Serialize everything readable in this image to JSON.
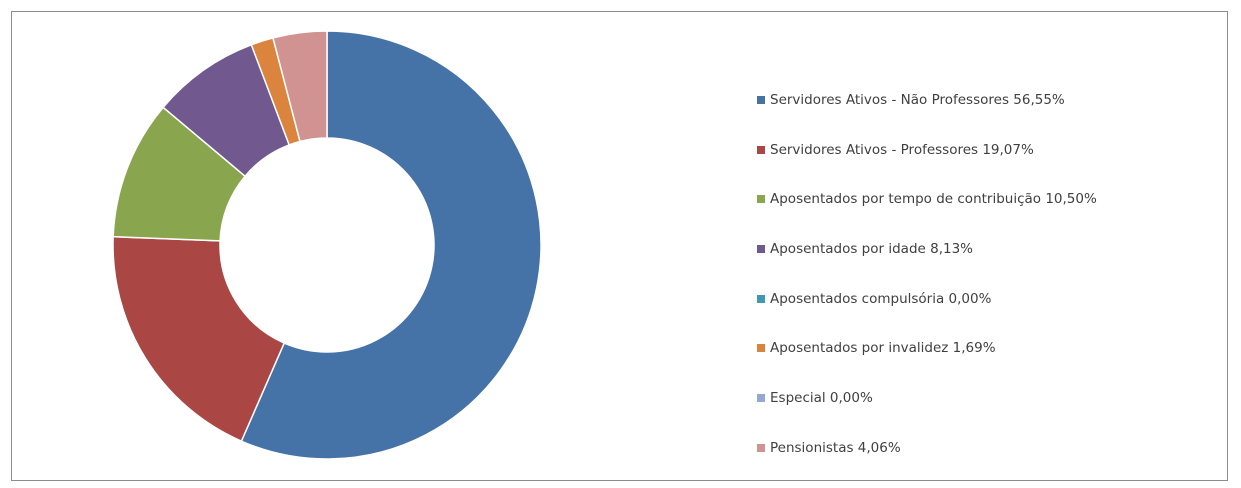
{
  "chart_data": {
    "type": "pie",
    "subtype": "donut",
    "title": "",
    "legend_position": "right",
    "slices": [
      {
        "label": "Servidores Ativos - Não Professores 56,55%",
        "value": 56.55,
        "color": "#4572A7"
      },
      {
        "label": "Servidores Ativos - Professores 19,07%",
        "value": 19.07,
        "color": "#AA4643"
      },
      {
        "label": "Aposentados por tempo de contribuição 10,50%",
        "value": 10.5,
        "color": "#89A54E"
      },
      {
        "label": "Aposentados por idade 8,13%",
        "value": 8.13,
        "color": "#71588F"
      },
      {
        "label": "Aposentados compulsória 0,00%",
        "value": 0.0,
        "color": "#4198AF"
      },
      {
        "label": "Aposentados por invalidez 1,69%",
        "value": 1.69,
        "color": "#DB843D"
      },
      {
        "label": "Especial 0,00%",
        "value": 0.0,
        "color": "#93A9CF"
      },
      {
        "label": "Pensionistas 4,06%",
        "value": 4.06,
        "color": "#D19392"
      }
    ]
  }
}
